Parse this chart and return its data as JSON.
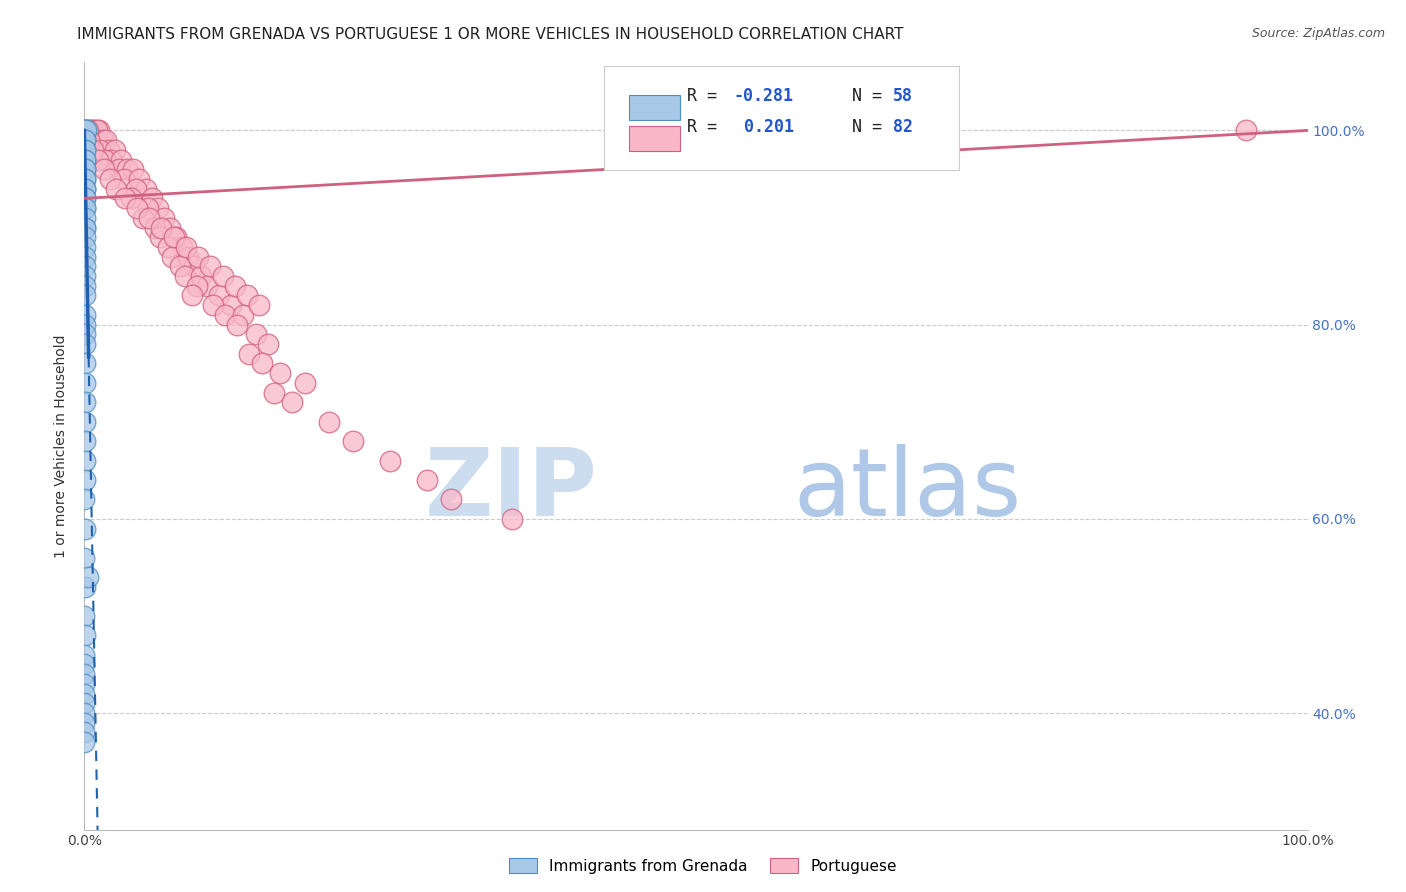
{
  "title": "IMMIGRANTS FROM GRENADA VS PORTUGUESE 1 OR MORE VEHICLES IN HOUSEHOLD CORRELATION CHART",
  "source": "Source: ZipAtlas.com",
  "ylabel": "1 or more Vehicles in Household",
  "xlim": [
    0,
    100
  ],
  "ylim": [
    28,
    107
  ],
  "ytick_labels": [
    "40.0%",
    "60.0%",
    "80.0%",
    "100.0%"
  ],
  "ytick_values": [
    40,
    60,
    80,
    100
  ],
  "legend_blue_r": "-0.281",
  "legend_blue_n": "58",
  "legend_pink_r": "0.201",
  "legend_pink_n": "82",
  "blue_color": "#a8c8e8",
  "blue_edge": "#5090c0",
  "blue_line_color": "#2060b0",
  "pink_color": "#f8b8c8",
  "pink_edge": "#d06080",
  "pink_line_color": "#d06080",
  "watermark_zip_color": "#ccddf0",
  "watermark_atlas_color": "#b0c8e8",
  "background_color": "#ffffff",
  "title_fontsize": 11,
  "source_fontsize": 9,
  "blue_scatter_x": [
    0.05,
    0.08,
    0.1,
    0.12,
    0.05,
    0.07,
    0.09,
    0.06,
    0.08,
    0.04,
    0.06,
    0.05,
    0.07,
    0.08,
    0.06,
    0.05,
    0.04,
    0.06,
    0.07,
    0.05,
    0.03,
    0.04,
    0.05,
    0.06,
    0.03,
    0.04,
    0.05,
    0.03,
    0.04,
    0.03,
    0.02,
    0.03,
    0.04,
    0.02,
    0.03,
    0.02,
    0.03,
    0.02,
    0.03,
    0.02,
    0.02,
    0.01,
    0.02,
    0.01,
    0.02,
    0.01,
    0.02,
    0.01,
    0.01,
    0.01,
    0.01,
    0.01,
    0.01,
    0.01,
    0.01,
    0.01,
    0.28,
    0.01
  ],
  "blue_scatter_y": [
    100,
    100,
    100,
    100,
    99,
    99,
    98,
    98,
    97,
    97,
    96,
    96,
    95,
    95,
    94,
    94,
    93,
    93,
    92,
    92,
    91,
    90,
    90,
    89,
    88,
    87,
    86,
    85,
    84,
    83,
    81,
    80,
    79,
    78,
    76,
    74,
    72,
    70,
    68,
    66,
    64,
    62,
    59,
    56,
    53,
    50,
    48,
    46,
    45,
    44,
    43,
    42,
    41,
    40,
    39,
    38,
    54,
    37
  ],
  "pink_scatter_x": [
    0.5,
    0.8,
    0.6,
    1.2,
    1.0,
    0.9,
    1.5,
    1.8,
    2.0,
    1.3,
    2.5,
    2.2,
    1.7,
    3.0,
    2.8,
    3.5,
    4.0,
    3.2,
    4.5,
    5.0,
    4.2,
    3.8,
    5.5,
    6.0,
    5.2,
    4.8,
    6.5,
    7.0,
    5.8,
    6.2,
    7.5,
    8.0,
    6.8,
    7.2,
    8.5,
    9.0,
    7.8,
    8.2,
    9.5,
    10.0,
    9.2,
    8.8,
    11.0,
    12.0,
    10.5,
    11.5,
    13.0,
    12.5,
    14.0,
    15.0,
    13.5,
    14.5,
    16.0,
    18.0,
    15.5,
    17.0,
    20.0,
    22.0,
    25.0,
    28.0,
    30.0,
    35.0,
    0.3,
    0.4,
    0.7,
    1.1,
    1.6,
    2.1,
    2.6,
    3.3,
    4.3,
    5.3,
    6.3,
    7.3,
    8.3,
    9.3,
    10.3,
    11.3,
    12.3,
    13.3,
    14.3,
    95.0
  ],
  "pink_scatter_y": [
    100,
    100,
    100,
    100,
    100,
    99,
    99,
    99,
    98,
    98,
    98,
    97,
    97,
    97,
    96,
    96,
    96,
    95,
    95,
    94,
    94,
    93,
    93,
    92,
    92,
    91,
    91,
    90,
    90,
    89,
    89,
    88,
    88,
    87,
    87,
    86,
    86,
    85,
    85,
    84,
    84,
    83,
    83,
    82,
    82,
    81,
    81,
    80,
    79,
    78,
    77,
    76,
    75,
    74,
    73,
    72,
    70,
    68,
    66,
    64,
    62,
    60,
    100,
    99,
    98,
    97,
    96,
    95,
    94,
    93,
    92,
    91,
    90,
    89,
    88,
    87,
    86,
    85,
    84,
    83,
    82,
    100
  ]
}
